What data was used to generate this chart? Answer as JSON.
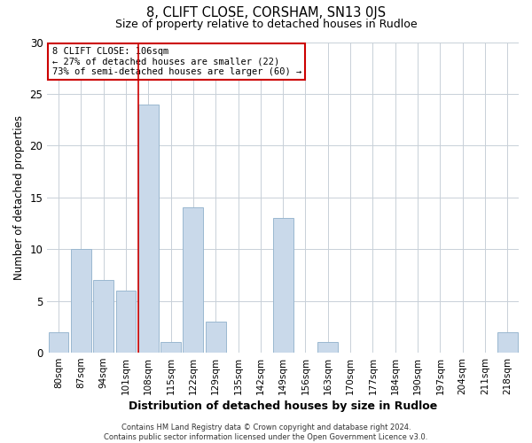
{
  "title": "8, CLIFT CLOSE, CORSHAM, SN13 0JS",
  "subtitle": "Size of property relative to detached houses in Rudloe",
  "xlabel": "Distribution of detached houses by size in Rudloe",
  "ylabel": "Number of detached properties",
  "footer_line1": "Contains HM Land Registry data © Crown copyright and database right 2024.",
  "footer_line2": "Contains public sector information licensed under the Open Government Licence v3.0.",
  "annotation_line1": "8 CLIFT CLOSE: 106sqm",
  "annotation_line2": "← 27% of detached houses are smaller (22)",
  "annotation_line3": "73% of semi-detached houses are larger (60) →",
  "bar_color": "#c9d9ea",
  "bar_edge_color": "#9ab8d0",
  "reference_line_color": "#cc0000",
  "annotation_box_edge_color": "#cc0000",
  "background_color": "#ffffff",
  "grid_color": "#c8d0d8",
  "categories": [
    "80sqm",
    "87sqm",
    "94sqm",
    "101sqm",
    "108sqm",
    "115sqm",
    "122sqm",
    "129sqm",
    "135sqm",
    "142sqm",
    "149sqm",
    "156sqm",
    "163sqm",
    "170sqm",
    "177sqm",
    "184sqm",
    "190sqm",
    "197sqm",
    "204sqm",
    "211sqm",
    "218sqm"
  ],
  "values": [
    2,
    10,
    7,
    6,
    24,
    1,
    14,
    3,
    0,
    0,
    13,
    0,
    1,
    0,
    0,
    0,
    0,
    0,
    0,
    0,
    2
  ],
  "reference_index": 4,
  "ylim": [
    0,
    30
  ],
  "yticks": [
    0,
    5,
    10,
    15,
    20,
    25,
    30
  ]
}
